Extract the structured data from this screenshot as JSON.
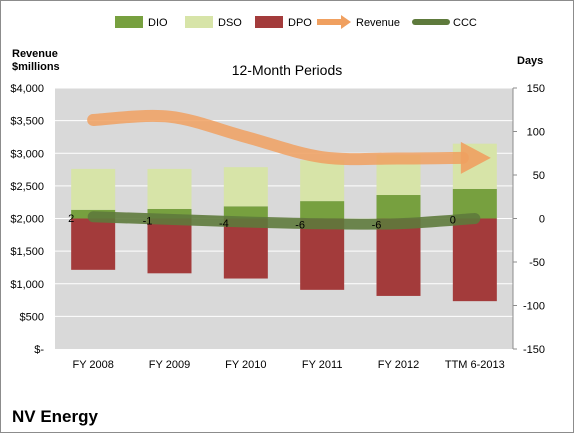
{
  "chart_data": {
    "type": "bar",
    "title": "12-Month Periods",
    "company": "NV Energy",
    "categories": [
      "FY 2008",
      "FY 2009",
      "FY 2010",
      "FY 2011",
      "FY 2012",
      "TTM 6-2013"
    ],
    "left_axis": {
      "label_line1": "Revenue",
      "label_line2": "$millions",
      "range": [
        0,
        4000
      ],
      "ticks": [
        0,
        500,
        1000,
        1500,
        2000,
        2500,
        3000,
        3500,
        4000
      ],
      "tick_labels": [
        "$-",
        "$500",
        "$1,000",
        "$1,500",
        "$2,000",
        "$2,500",
        "$3,000",
        "$3,500",
        "$4,000"
      ]
    },
    "right_axis": {
      "label": "Days",
      "range": [
        -150,
        150
      ],
      "ticks": [
        -150,
        -100,
        -50,
        0,
        50,
        100,
        150
      ],
      "tick_labels": [
        "-150",
        "-100",
        "-50",
        "0",
        "50",
        "100",
        "150"
      ]
    },
    "series": [
      {
        "name": "DIO",
        "axis": "right",
        "color": "#77a03f",
        "values": [
          10,
          11,
          14,
          20,
          27,
          34
        ]
      },
      {
        "name": "DSO",
        "axis": "right",
        "color": "#d7e4a8",
        "values": [
          47,
          46,
          45,
          47,
          46,
          52
        ]
      },
      {
        "name": "DPO",
        "axis": "right",
        "color": "#a33b3b",
        "values": [
          -59,
          -63,
          -69,
          -82,
          -89,
          -95
        ]
      },
      {
        "name": "Revenue",
        "axis": "left",
        "color": "#f0a060",
        "values": [
          3510,
          3560,
          3250,
          2940,
          2920,
          2930
        ]
      },
      {
        "name": "CCC",
        "axis": "right",
        "color": "#5e7a3c",
        "values": [
          2,
          -1,
          -4,
          -6,
          -6,
          0
        ]
      }
    ],
    "ccc_labels": [
      "2",
      "-1",
      "-4",
      "-6",
      "-6",
      "0"
    ],
    "legend": {
      "position": "top"
    },
    "grid": true,
    "plot_background": "#d9d9d9"
  }
}
